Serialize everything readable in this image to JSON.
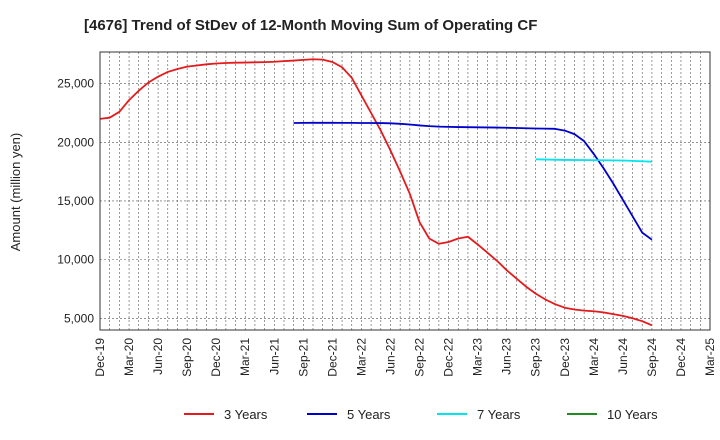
{
  "chart_data": {
    "type": "line",
    "title": "[4676]  Trend of StDev of 12-Month Moving Sum of Operating CF",
    "xlabel": "",
    "ylabel": "Amount (million yen)",
    "x_ticks": [
      "Dec-19",
      "Mar-20",
      "Jun-20",
      "Sep-20",
      "Dec-20",
      "Mar-21",
      "Jun-21",
      "Sep-21",
      "Dec-21",
      "Mar-22",
      "Jun-22",
      "Sep-22",
      "Dec-22",
      "Mar-23",
      "Jun-23",
      "Sep-23",
      "Dec-23",
      "Mar-24",
      "Jun-24",
      "Sep-24",
      "Dec-24",
      "Mar-25"
    ],
    "y_ticks": [
      5000,
      10000,
      15000,
      20000,
      25000
    ],
    "y_tick_labels": [
      "5,000",
      "10,000",
      "15,000",
      "20,000",
      "25,000"
    ],
    "ylim": [
      4000,
      27700
    ],
    "grid": true,
    "legend_position": "bottom",
    "series": [
      {
        "name": "3 Years",
        "color": "#e41a1c",
        "points": [
          [
            "Dec-19",
            22000
          ],
          [
            "Jan-20",
            22100
          ],
          [
            "Feb-20",
            22600
          ],
          [
            "Mar-20",
            23600
          ],
          [
            "Apr-20",
            24400
          ],
          [
            "May-20",
            25100
          ],
          [
            "Jun-20",
            25600
          ],
          [
            "Jul-20",
            26000
          ],
          [
            "Aug-20",
            26250
          ],
          [
            "Sep-20",
            26450
          ],
          [
            "Oct-20",
            26550
          ],
          [
            "Nov-20",
            26650
          ],
          [
            "Dec-20",
            26720
          ],
          [
            "Jan-21",
            26760
          ],
          [
            "Feb-21",
            26790
          ],
          [
            "Mar-21",
            26800
          ],
          [
            "Apr-21",
            26820
          ],
          [
            "May-21",
            26840
          ],
          [
            "Jun-21",
            26870
          ],
          [
            "Jul-21",
            26920
          ],
          [
            "Aug-21",
            26970
          ],
          [
            "Sep-21",
            27030
          ],
          [
            "Oct-21",
            27080
          ],
          [
            "Nov-21",
            27050
          ],
          [
            "Dec-21",
            26850
          ],
          [
            "Jan-22",
            26400
          ],
          [
            "Feb-22",
            25500
          ],
          [
            "Mar-22",
            24000
          ],
          [
            "Apr-22",
            22500
          ],
          [
            "May-22",
            21000
          ],
          [
            "Jun-22",
            19300
          ],
          [
            "Jul-22",
            17500
          ],
          [
            "Aug-22",
            15600
          ],
          [
            "Sep-22",
            13200
          ],
          [
            "Oct-22",
            11800
          ],
          [
            "Nov-22",
            11350
          ],
          [
            "Dec-22",
            11500
          ],
          [
            "Jan-23",
            11800
          ],
          [
            "Feb-23",
            11950
          ],
          [
            "Mar-23",
            11300
          ],
          [
            "Apr-23",
            10600
          ],
          [
            "May-23",
            9900
          ],
          [
            "Jun-23",
            9100
          ],
          [
            "Jul-23",
            8400
          ],
          [
            "Aug-23",
            7700
          ],
          [
            "Sep-23",
            7100
          ],
          [
            "Oct-23",
            6600
          ],
          [
            "Nov-23",
            6200
          ],
          [
            "Dec-23",
            5900
          ],
          [
            "Jan-24",
            5750
          ],
          [
            "Feb-24",
            5650
          ],
          [
            "Mar-24",
            5600
          ],
          [
            "Apr-24",
            5500
          ],
          [
            "May-24",
            5350
          ],
          [
            "Jun-24",
            5200
          ],
          [
            "Jul-24",
            5000
          ],
          [
            "Aug-24",
            4750
          ],
          [
            "Sep-24",
            4400
          ]
        ]
      },
      {
        "name": "5 Years",
        "color": "#0000cc",
        "points": [
          [
            "Aug-21",
            21650
          ],
          [
            "Sep-21",
            21660
          ],
          [
            "Oct-21",
            21665
          ],
          [
            "Nov-21",
            21665
          ],
          [
            "Dec-21",
            21665
          ],
          [
            "Jan-22",
            21660
          ],
          [
            "Feb-22",
            21655
          ],
          [
            "Mar-22",
            21650
          ],
          [
            "Apr-22",
            21645
          ],
          [
            "May-22",
            21640
          ],
          [
            "Jun-22",
            21620
          ],
          [
            "Jul-22",
            21580
          ],
          [
            "Aug-22",
            21520
          ],
          [
            "Sep-22",
            21440
          ],
          [
            "Oct-22",
            21380
          ],
          [
            "Nov-22",
            21340
          ],
          [
            "Dec-22",
            21320
          ],
          [
            "Jan-23",
            21300
          ],
          [
            "Feb-23",
            21290
          ],
          [
            "Mar-23",
            21280
          ],
          [
            "Apr-23",
            21270
          ],
          [
            "May-23",
            21260
          ],
          [
            "Jun-23",
            21240
          ],
          [
            "Jul-23",
            21220
          ],
          [
            "Aug-23",
            21200
          ],
          [
            "Sep-23",
            21180
          ],
          [
            "Oct-23",
            21170
          ],
          [
            "Nov-23",
            21150
          ],
          [
            "Dec-23",
            21000
          ],
          [
            "Jan-24",
            20700
          ],
          [
            "Feb-24",
            20100
          ],
          [
            "Mar-24",
            19000
          ],
          [
            "Apr-24",
            17800
          ],
          [
            "May-24",
            16500
          ],
          [
            "Jun-24",
            15100
          ],
          [
            "Jul-24",
            13700
          ],
          [
            "Aug-24",
            12300
          ],
          [
            "Sep-24",
            11700
          ]
        ]
      },
      {
        "name": "7 Years",
        "color": "#00e5ee",
        "points": [
          [
            "Sep-23",
            18550
          ],
          [
            "Dec-23",
            18500
          ],
          [
            "Mar-24",
            18480
          ],
          [
            "Jun-24",
            18450
          ],
          [
            "Sep-24",
            18350
          ]
        ]
      },
      {
        "name": "10 Years",
        "color": "#228b22",
        "points": []
      }
    ]
  }
}
